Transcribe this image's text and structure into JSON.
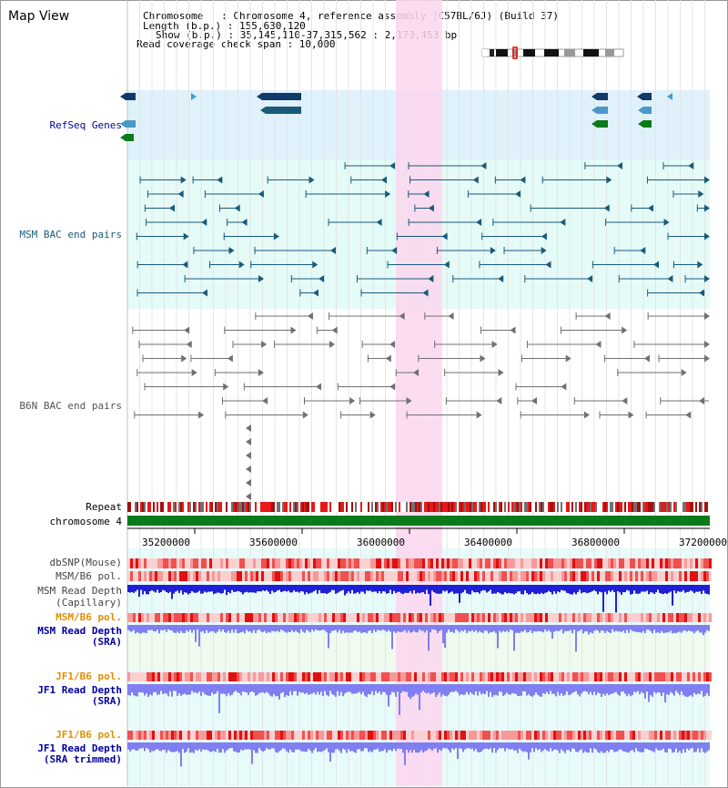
{
  "view": {
    "title": "Map View"
  },
  "header": {
    "chromosome": "Chromosome   : Chromosome 4, reference assembly (C57BL/6J) (Build 37)",
    "length": "Length (b.p.) : 155,630,120",
    "show": "Show (b.p.) : 35,145,110-37,315,562 : 2,170,453 bp",
    "coverage": "Read coverage check span : 10,000"
  },
  "tracks": {
    "refseq": "RefSeq Genes",
    "msm_bac": "MSM BAC end pairs",
    "b6n_bac": "B6N BAC end pairs",
    "repeat": "Repeat",
    "chromosome": "chromosome 4",
    "dbsnp": "dbSNP(Mouse)",
    "msm_b6_pol": "MSM/B6 pol.",
    "msm_depth_cap_1": "MSM Read Depth",
    "msm_depth_cap_2": "(Capillary)",
    "msm_b6_pol_sra": "MSM/B6 pol.",
    "msm_depth_sra_1": "MSM Read Depth",
    "msm_depth_sra_2": "(SRA)",
    "jf1_b6_pol": "JF1/B6 pol.",
    "jf1_depth_sra_1": "JF1 Read Depth",
    "jf1_depth_sra_2": "(SRA)",
    "jf1_b6_pol_trim": "JF1/B6 pol.",
    "jf1_depth_trim_1": "JF1 Read Depth",
    "jf1_depth_trim_2": "(SRA trimmed)"
  },
  "ruler": {
    "ticks": [
      "35200000",
      "35600000",
      "36000000",
      "36400000",
      "36800000",
      "37200000"
    ]
  },
  "colors": {
    "refseq_bg": "#dff1fb",
    "bac_bg": "#e4fbf7",
    "highlight": "#fbd6ef",
    "msm_gene": "#1a5a78",
    "gray_gene": "#707070",
    "repeat_red": "#e81818",
    "chromosome": "#0a7a1a",
    "depth_blue": "#1f1fd8",
    "depth_light": "#7f7ff2",
    "pol_red": "#f04040",
    "label_blue": "#0000a0",
    "label_orange": "#e09000"
  }
}
